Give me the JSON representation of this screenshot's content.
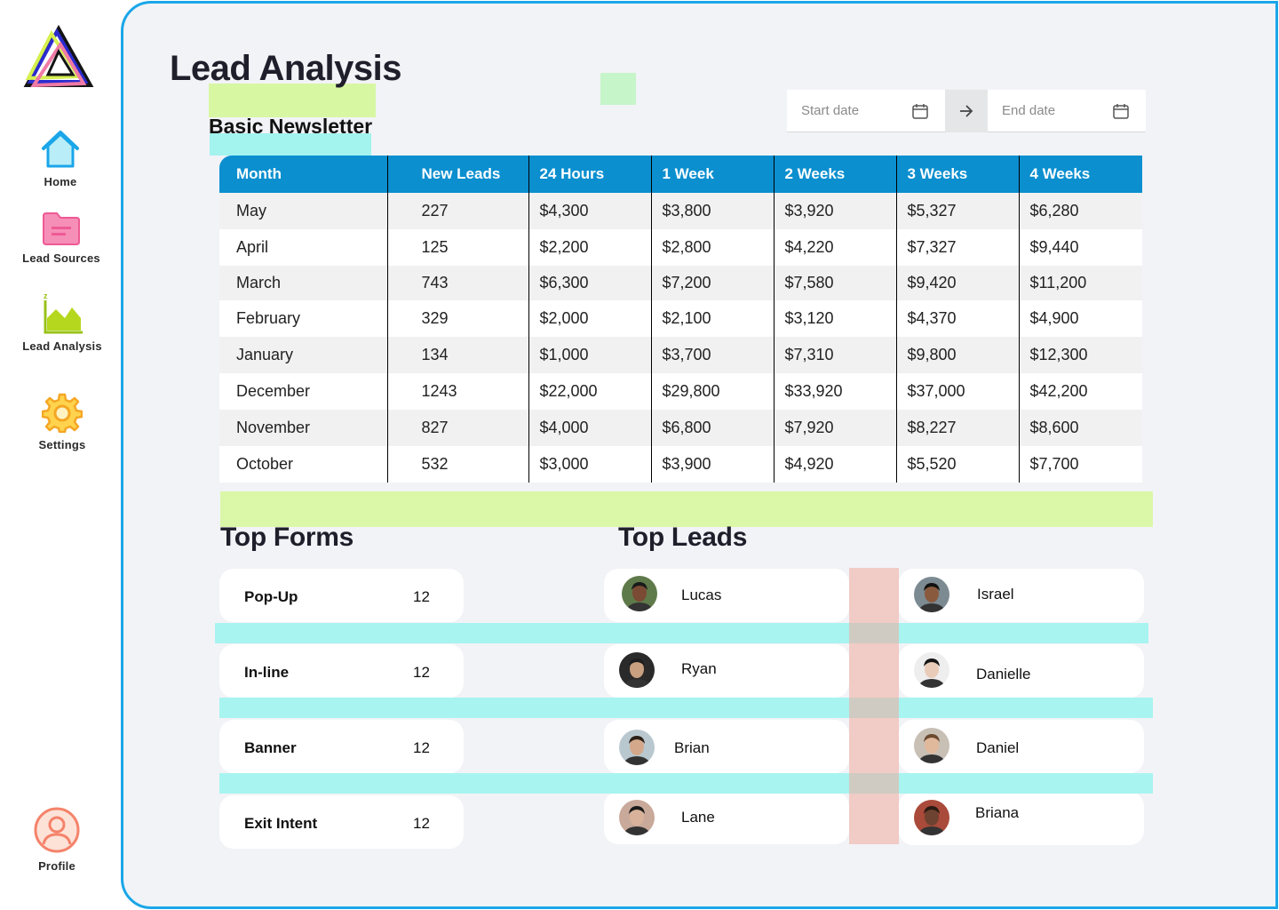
{
  "sidebar": {
    "items": [
      {
        "label": "Home",
        "icon": "home-icon"
      },
      {
        "label": "Lead Sources",
        "icon": "folder-icon"
      },
      {
        "label": "Lead Analysis",
        "icon": "chart-icon"
      },
      {
        "label": "Settings",
        "icon": "gear-icon"
      },
      {
        "label": "Profile",
        "icon": "user-icon"
      }
    ]
  },
  "header": {
    "title": "Lead Analysis",
    "subtitle": "Basic Newsletter"
  },
  "date_range": {
    "start_placeholder": "Start date",
    "end_placeholder": "End date"
  },
  "table": {
    "columns": [
      "Month",
      "New Leads",
      "24 Hours",
      "1 Week",
      "2 Weeks",
      "3 Weeks",
      "4 Weeks"
    ],
    "rows": [
      [
        "May",
        "227",
        "$4,300",
        "$3,800",
        "$3,920",
        "$5,327",
        "$6,280"
      ],
      [
        "April",
        "125",
        "$2,200",
        "$2,800",
        "$4,220",
        "$7,327",
        "$9,440"
      ],
      [
        "March",
        "743",
        "$6,300",
        "$7,200",
        "$7,580",
        "$9,420",
        "$11,200"
      ],
      [
        "February",
        "329",
        "$2,000",
        "$2,100",
        "$3,120",
        "$4,370",
        "$4,900"
      ],
      [
        "January",
        "134",
        "$1,000",
        "$3,700",
        "$7,310",
        "$9,800",
        "$12,300"
      ],
      [
        "December",
        "1243",
        "$22,000",
        "$29,800",
        "$33,920",
        "$37,000",
        "$42,200"
      ],
      [
        "November",
        "827",
        "$4,000",
        "$6,800",
        "$7,920",
        "$8,227",
        "$8,600"
      ],
      [
        "October",
        "532",
        "$3,000",
        "$3,900",
        "$4,920",
        "$5,520",
        "$7,700"
      ]
    ]
  },
  "top_forms": {
    "title": "Top Forms",
    "items": [
      {
        "name": "Pop-Up",
        "count": "12"
      },
      {
        "name": "In-line",
        "count": "12"
      },
      {
        "name": "Banner",
        "count": "12"
      },
      {
        "name": "Exit Intent",
        "count": "12"
      }
    ]
  },
  "top_leads": {
    "title": "Top Leads",
    "left": [
      {
        "name": "Lucas",
        "skin": "#7a4a34",
        "hair": "#1a1a1a",
        "bg": "#5f7a4a"
      },
      {
        "name": "Ryan",
        "skin": "#c9a080",
        "hair": "#1e1e1e",
        "bg": "#2a2a2a"
      },
      {
        "name": "Brian",
        "skin": "#d4a88a",
        "hair": "#2b2018",
        "bg": "#b9c8cf"
      },
      {
        "name": "Lane",
        "skin": "#d8b29a",
        "hair": "#1b1b1b",
        "bg": "#c9a99a"
      }
    ],
    "right": [
      {
        "name": "Israel",
        "skin": "#8a5a3e",
        "hair": "#121212",
        "bg": "#7c8a92"
      },
      {
        "name": "Danielle",
        "skin": "#e8cbb8",
        "hair": "#161616",
        "bg": "#eeeeee"
      },
      {
        "name": "Daniel",
        "skin": "#e0b89c",
        "hair": "#6b4a30",
        "bg": "#c8bfb5"
      },
      {
        "name": "Briana",
        "skin": "#6e4230",
        "hair": "#2a1a12",
        "bg": "#a94a3a"
      }
    ]
  },
  "colors": {
    "accent": "#1aa6e8",
    "table_header": "#0b8fcf",
    "highlight_green": "#dbf7a8",
    "highlight_cyan": "#a3f3ef",
    "highlight_pink": "#f0a99d"
  }
}
